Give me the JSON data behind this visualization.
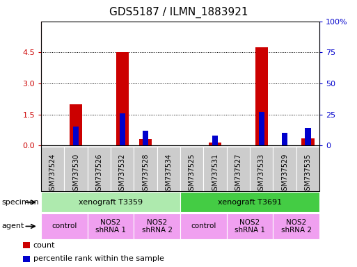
{
  "title": "GDS5187 / ILMN_1883921",
  "samples": [
    "GSM737524",
    "GSM737530",
    "GSM737526",
    "GSM737532",
    "GSM737528",
    "GSM737534",
    "GSM737525",
    "GSM737531",
    "GSM737527",
    "GSM737533",
    "GSM737529",
    "GSM737535"
  ],
  "red_values": [
    0.0,
    2.0,
    0.0,
    4.5,
    0.3,
    0.0,
    0.0,
    0.15,
    0.0,
    4.75,
    0.0,
    0.35
  ],
  "blue_percentile": [
    0,
    15,
    0,
    26,
    12,
    0,
    0,
    8,
    0,
    27,
    10,
    14
  ],
  "ylim_left": [
    0,
    6
  ],
  "ylim_right": [
    0,
    100
  ],
  "yticks_left": [
    0,
    1.5,
    3.0,
    4.5
  ],
  "yticks_right": [
    0,
    25,
    50,
    75,
    100
  ],
  "specimen_groups": [
    {
      "label": "xenograft T3359",
      "start": 0,
      "end": 6,
      "color": "#AEEAAE"
    },
    {
      "label": "xenograft T3691",
      "start": 6,
      "end": 12,
      "color": "#44CC44"
    }
  ],
  "agent_groups": [
    {
      "label": "control",
      "start": 0,
      "end": 2,
      "color": "#F0A0F0"
    },
    {
      "label": "NOS2\nshRNA 1",
      "start": 2,
      "end": 4,
      "color": "#F0A0F0"
    },
    {
      "label": "NOS2\nshRNA 2",
      "start": 4,
      "end": 6,
      "color": "#F0A0F0"
    },
    {
      "label": "control",
      "start": 6,
      "end": 8,
      "color": "#F0A0F0"
    },
    {
      "label": "NOS2\nshRNA 1",
      "start": 8,
      "end": 10,
      "color": "#F0A0F0"
    },
    {
      "label": "NOS2\nshRNA 2",
      "start": 10,
      "end": 12,
      "color": "#F0A0F0"
    }
  ],
  "bar_color_red": "#CC0000",
  "bar_color_blue": "#0000CC",
  "left_axis_color": "#CC0000",
  "right_axis_color": "#0000CC",
  "legend_red": "count",
  "legend_blue": "percentile rank within the sample",
  "specimen_label": "specimen",
  "agent_label": "agent",
  "tick_label_bg": "#CCCCCC"
}
